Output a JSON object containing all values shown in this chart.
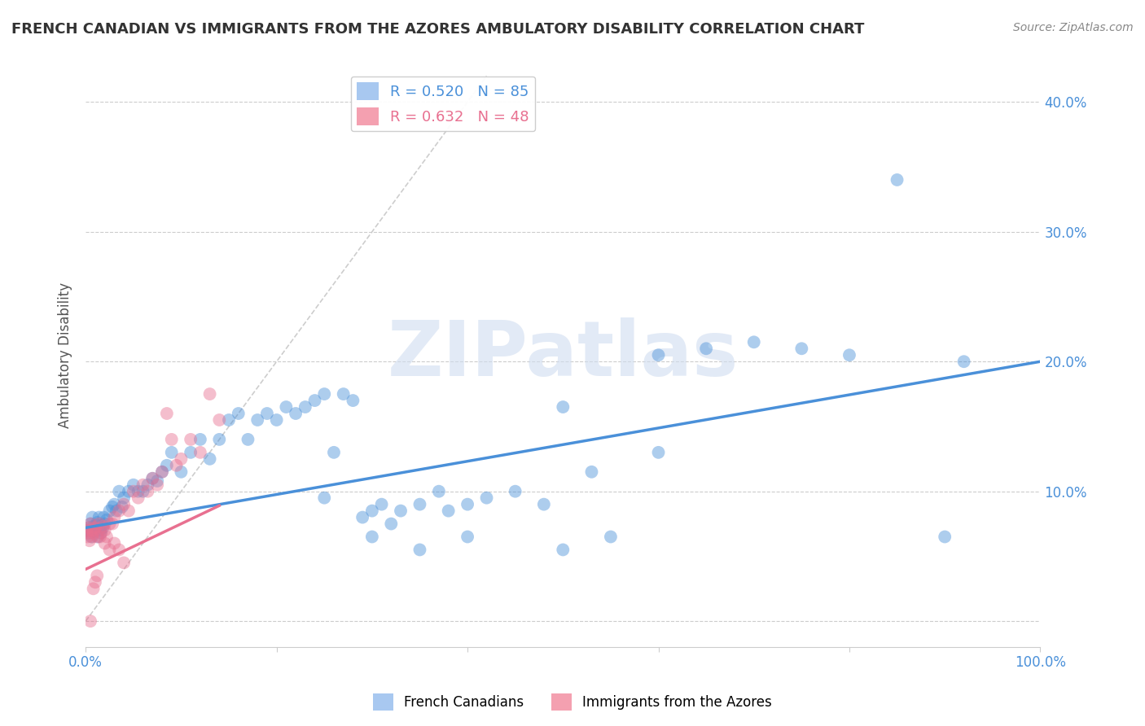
{
  "title": "FRENCH CANADIAN VS IMMIGRANTS FROM THE AZORES AMBULATORY DISABILITY CORRELATION CHART",
  "source": "Source: ZipAtlas.com",
  "ylabel": "Ambulatory Disability",
  "xlim": [
    0,
    1.0
  ],
  "ylim": [
    -0.02,
    0.43
  ],
  "legend1_label": "R = 0.520   N = 85",
  "legend2_label": "R = 0.632   N = 48",
  "legend1_color": "#a8c8f0",
  "legend2_color": "#f4a0b0",
  "blue_color": "#4a90d9",
  "pink_color": "#e87090",
  "diagonal_color": "#c8c8c8",
  "watermark": "ZIPatlas",
  "watermark_color": "#d0ddf0",
  "blue_N": 85,
  "pink_N": 48,
  "blue_slope": 0.128,
  "blue_intercept": 0.072,
  "pink_slope": 0.35,
  "pink_intercept": 0.04,
  "blue_points_x": [
    0.002,
    0.003,
    0.004,
    0.005,
    0.006,
    0.007,
    0.008,
    0.009,
    0.01,
    0.011,
    0.012,
    0.013,
    0.014,
    0.015,
    0.016,
    0.017,
    0.018,
    0.019,
    0.02,
    0.022,
    0.025,
    0.028,
    0.03,
    0.032,
    0.035,
    0.038,
    0.04,
    0.045,
    0.05,
    0.055,
    0.06,
    0.065,
    0.07,
    0.075,
    0.08,
    0.085,
    0.09,
    0.1,
    0.11,
    0.12,
    0.13,
    0.14,
    0.15,
    0.16,
    0.17,
    0.18,
    0.19,
    0.2,
    0.21,
    0.22,
    0.23,
    0.24,
    0.25,
    0.26,
    0.27,
    0.28,
    0.29,
    0.3,
    0.31,
    0.32,
    0.33,
    0.35,
    0.37,
    0.38,
    0.4,
    0.42,
    0.45,
    0.48,
    0.5,
    0.53,
    0.55,
    0.6,
    0.65,
    0.7,
    0.75,
    0.8,
    0.85,
    0.9,
    0.6,
    0.5,
    0.35,
    0.25,
    0.3,
    0.4,
    0.92
  ],
  "blue_points_y": [
    0.07,
    0.072,
    0.068,
    0.075,
    0.065,
    0.08,
    0.073,
    0.069,
    0.071,
    0.074,
    0.076,
    0.065,
    0.08,
    0.07,
    0.068,
    0.074,
    0.072,
    0.08,
    0.075,
    0.078,
    0.085,
    0.088,
    0.09,
    0.085,
    0.1,
    0.088,
    0.095,
    0.1,
    0.105,
    0.1,
    0.1,
    0.105,
    0.11,
    0.108,
    0.115,
    0.12,
    0.13,
    0.115,
    0.13,
    0.14,
    0.125,
    0.14,
    0.155,
    0.16,
    0.14,
    0.155,
    0.16,
    0.155,
    0.165,
    0.16,
    0.165,
    0.17,
    0.175,
    0.13,
    0.175,
    0.17,
    0.08,
    0.085,
    0.09,
    0.075,
    0.085,
    0.09,
    0.1,
    0.085,
    0.09,
    0.095,
    0.1,
    0.09,
    0.165,
    0.115,
    0.065,
    0.205,
    0.21,
    0.215,
    0.21,
    0.205,
    0.34,
    0.065,
    0.13,
    0.055,
    0.055,
    0.095,
    0.065,
    0.065,
    0.2
  ],
  "pink_points_x": [
    0.0,
    0.001,
    0.002,
    0.003,
    0.004,
    0.005,
    0.006,
    0.007,
    0.008,
    0.009,
    0.01,
    0.012,
    0.014,
    0.016,
    0.018,
    0.02,
    0.022,
    0.025,
    0.028,
    0.03,
    0.035,
    0.04,
    0.045,
    0.05,
    0.055,
    0.06,
    0.065,
    0.07,
    0.075,
    0.08,
    0.085,
    0.09,
    0.095,
    0.1,
    0.11,
    0.12,
    0.13,
    0.14,
    0.015,
    0.02,
    0.025,
    0.03,
    0.035,
    0.04,
    0.005,
    0.01,
    0.008,
    0.012
  ],
  "pink_points_y": [
    0.07,
    0.068,
    0.065,
    0.072,
    0.062,
    0.075,
    0.07,
    0.065,
    0.068,
    0.07,
    0.072,
    0.065,
    0.075,
    0.068,
    0.073,
    0.07,
    0.065,
    0.075,
    0.075,
    0.08,
    0.085,
    0.09,
    0.085,
    0.1,
    0.095,
    0.105,
    0.1,
    0.11,
    0.105,
    0.115,
    0.16,
    0.14,
    0.12,
    0.125,
    0.14,
    0.13,
    0.175,
    0.155,
    0.065,
    0.06,
    0.055,
    0.06,
    0.055,
    0.045,
    0.0,
    0.03,
    0.025,
    0.035
  ]
}
